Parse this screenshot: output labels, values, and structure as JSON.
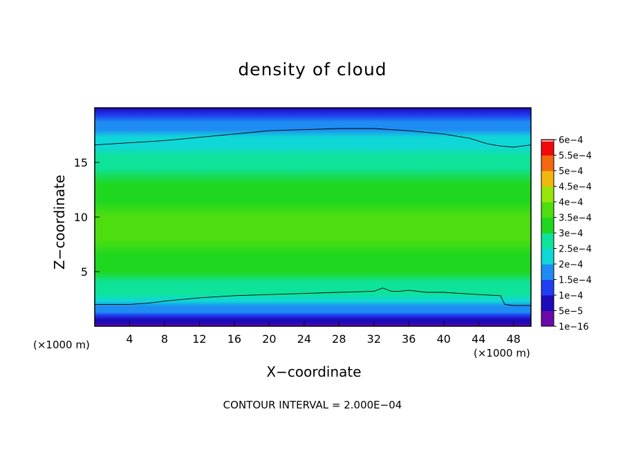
{
  "chart_data": {
    "type": "heatmap",
    "title": "density of cloud",
    "xlabel": "X−coordinate",
    "ylabel": "Z−coordinate",
    "x_unit": "(×1000 m)",
    "xlim": [
      0,
      50
    ],
    "ylim": [
      0,
      20
    ],
    "x_ticks": [
      4,
      8,
      12,
      16,
      20,
      24,
      28,
      32,
      36,
      40,
      44,
      48
    ],
    "y_ticks": [
      5,
      10,
      15
    ],
    "x_tick_labels": [
      "4",
      "8",
      "12",
      "16",
      "20",
      "24",
      "28",
      "32",
      "36",
      "40",
      "44",
      "48"
    ],
    "y_tick_labels": [
      "5",
      "10",
      "15"
    ],
    "colorbar": {
      "labels": [
        "1e−16",
        "5e−5",
        "1e−4",
        "1.5e−4",
        "2e−4",
        "2.5e−4",
        "3e−4",
        "3.5e−4",
        "4e−4",
        "4.5e−4",
        "5e−4",
        "5.5e−4",
        "6e−4"
      ],
      "values": [
        1e-16,
        5e-05,
        0.0001,
        0.00015,
        0.0002,
        0.00025,
        0.0003,
        0.00035,
        0.0004,
        0.00045,
        0.0005,
        0.00055,
        0.0006
      ],
      "colors": [
        "#6a0aa8",
        "#1d0ab8",
        "#1f3ef2",
        "#1e8cf2",
        "#10d7d7",
        "#0ee39a",
        "#1fd71f",
        "#4ede10",
        "#97e60a",
        "#f2b70e",
        "#f3680e",
        "#f20a0a",
        "#f5a0a0"
      ]
    },
    "contour_line_value": 0.0002,
    "contour_interval": 0.0002,
    "field_profile": {
      "z": [
        0,
        0.3,
        0.6,
        1.0,
        1.3,
        1.8,
        2.3,
        3.0,
        4.0,
        5.0,
        6.5,
        8.0,
        9.0,
        10.0,
        11.5,
        13.0,
        14.5,
        15.5,
        16.5,
        17.3,
        18.0,
        18.7,
        19.3,
        20.0
      ],
      "value": [
        2e-05,
        5e-05,
        9e-05,
        0.00013,
        0.00016,
        0.00019,
        0.00022,
        0.00026,
        0.00029,
        0.00031,
        0.00033,
        0.00035,
        0.00036,
        0.00035,
        0.00033,
        0.00031,
        0.00028,
        0.00026,
        0.00023,
        0.0002,
        0.00018,
        0.00015,
        0.00012,
        9e-05
      ]
    },
    "contour_upper": {
      "x": [
        0,
        4,
        8,
        12,
        16,
        20,
        24,
        28,
        32,
        36,
        40,
        43,
        45,
        46.5,
        48,
        50
      ],
      "z": [
        16.6,
        16.8,
        17.0,
        17.3,
        17.6,
        17.9,
        18.0,
        18.1,
        18.1,
        17.9,
        17.6,
        17.2,
        16.7,
        16.5,
        16.4,
        16.6
      ]
    },
    "contour_lower": {
      "x": [
        0,
        4,
        6,
        8,
        12,
        16,
        20,
        24,
        28,
        32,
        33,
        34,
        35,
        36,
        38,
        40,
        44,
        46.5,
        47,
        48,
        50
      ],
      "z": [
        2.0,
        2.0,
        2.1,
        2.3,
        2.6,
        2.8,
        2.9,
        3.0,
        3.1,
        3.2,
        3.5,
        3.2,
        3.2,
        3.3,
        3.1,
        3.1,
        2.9,
        2.8,
        2.0,
        1.9,
        1.9
      ]
    },
    "footer": "CONTOUR INTERVAL = 2.000E−04"
  }
}
